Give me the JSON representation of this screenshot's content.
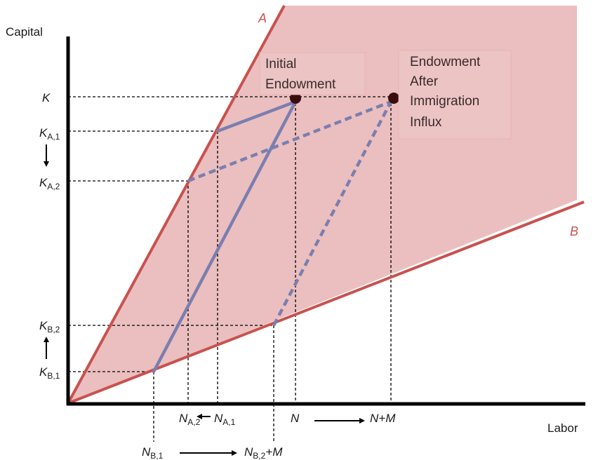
{
  "colors": {
    "cone_fill": "#eabcbc",
    "ray": "#c8524f",
    "lines": "#7b7eb0",
    "dots": "#3a0d0d",
    "axis": "#000000"
  },
  "axes": {
    "y_label": "Capital",
    "x_label": "Labor"
  },
  "rays": {
    "a": "A",
    "b": "B"
  },
  "annotations": {
    "initial_line1": "Initial",
    "initial_line2": "Endowment",
    "after_line1": "Endowment",
    "after_line2": "After",
    "after_line3": "Immigration",
    "after_line4": "Influx"
  },
  "y_ticks": {
    "k": "K",
    "ka1_main": "K",
    "ka1_sub": "A,1",
    "ka2_main": "K",
    "ka2_sub": "A,2",
    "kb2_main": "K",
    "kb2_sub": "B,2",
    "kb1_main": "K",
    "kb1_sub": "B,1"
  },
  "x_ticks": {
    "na2_main": "N",
    "na2_sub": "A,2",
    "na1_main": "N",
    "na1_sub": "A,1",
    "n": "N",
    "npm": "N+M",
    "nb1_main": "N",
    "nb1_sub": "B,1",
    "nb2_main": "N",
    "nb2_sub": "B,2",
    "nb2_suffix": "+M"
  }
}
